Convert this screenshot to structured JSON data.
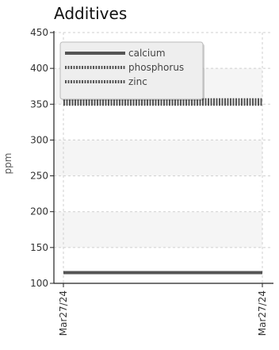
{
  "chart_data": {
    "type": "line",
    "title": "Additives",
    "xlabel": "",
    "ylabel": "ppm",
    "x_tick_labels": [
      "Mar27/24",
      "Mar27/24"
    ],
    "ylim": [
      100,
      450
    ],
    "y_ticks": [
      100,
      150,
      200,
      250,
      300,
      350,
      400,
      450
    ],
    "grid": true,
    "legend_position": "top-left",
    "series": [
      {
        "name": "calcium",
        "values": [
          115,
          115
        ],
        "color": "#555555",
        "style": "solid"
      },
      {
        "name": "phosphorus",
        "values": [
          355,
          355
        ],
        "color": "#555555",
        "style": "dotted-thick"
      },
      {
        "name": "zinc",
        "values": [
          350,
          350
        ],
        "color": "#555555",
        "style": "dotted"
      }
    ]
  }
}
